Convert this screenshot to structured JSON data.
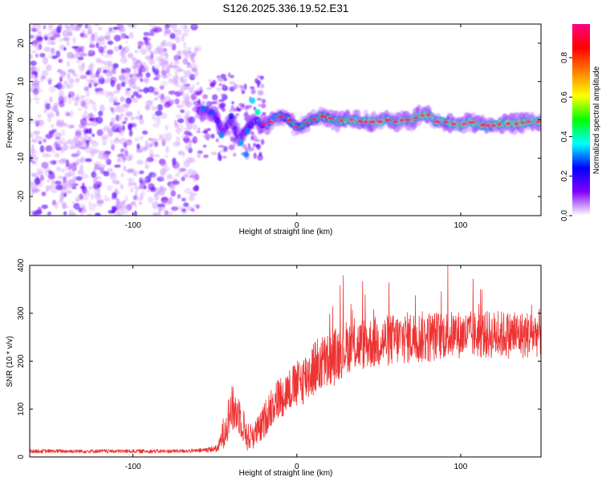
{
  "title": "S126.2025.336.19.52.E31",
  "chart_data": [
    {
      "type": "heatmap",
      "name": "spectrogram",
      "xlabel": "Height of straight line (km)",
      "ylabel": "Frequency (Hz)",
      "xlim": [
        -163,
        149
      ],
      "ylim": [
        -25,
        25
      ],
      "xticks": [
        -100,
        0,
        100
      ],
      "yticks": [
        -20,
        -10,
        0,
        10,
        20
      ],
      "colorbar": {
        "label": "Normalized spectral amplitude",
        "range": [
          0,
          0.97
        ],
        "ticks": [
          0.0,
          0.2,
          0.4,
          0.6,
          0.8
        ],
        "tick_labels": [
          "0.0",
          "0.2",
          "0.4",
          "0.6",
          "0.8"
        ],
        "colors": [
          "#ffffff",
          "#8000ff",
          "#0000ff",
          "#00ffff",
          "#00ff00",
          "#ffff00",
          "#ff8000",
          "#ff0000",
          "#ff0080"
        ]
      },
      "noise_region": {
        "x": [
          -163,
          -60
        ],
        "amplitude": [
          0.03,
          0.18
        ]
      },
      "transition_region": {
        "x": [
          -60,
          -20
        ],
        "amplitude": [
          0.05,
          0.35
        ]
      },
      "track": {
        "x": [
          -60,
          -55,
          -50,
          -45,
          -40,
          -35,
          -30,
          -25,
          -22,
          -18,
          -15,
          -10,
          -5,
          0,
          5,
          10,
          15,
          20,
          25,
          30,
          35,
          40,
          45,
          50,
          55,
          60,
          65,
          70,
          75,
          80,
          85,
          90,
          95,
          100,
          105,
          110,
          115,
          120,
          125,
          130,
          135,
          140,
          145,
          149
        ],
        "freq": [
          2,
          2.5,
          1,
          -3,
          0,
          -5,
          -2,
          0,
          -1,
          -1.5,
          0,
          1,
          0,
          -2,
          -1,
          0,
          1,
          0.5,
          -0.5,
          0,
          0,
          -0.5,
          -0.5,
          -0.5,
          0,
          -0.5,
          0,
          0,
          1,
          1.5,
          -0.5,
          -0.5,
          -1,
          -1.5,
          -0.5,
          -1,
          -1.5,
          -1.5,
          -1,
          -1,
          -1,
          -0.5,
          -0.5,
          -0.5
        ],
        "amp": [
          0.25,
          0.28,
          0.25,
          0.3,
          0.28,
          0.3,
          0.3,
          0.35,
          0.4,
          0.5,
          0.6,
          0.65,
          0.7,
          0.7,
          0.75,
          0.8,
          0.8,
          0.85,
          0.85,
          0.9,
          0.9,
          0.92,
          0.9,
          0.92,
          0.92,
          0.9,
          0.92,
          0.9,
          0.9,
          0.92,
          0.92,
          0.9,
          0.92,
          0.92,
          0.9,
          0.92,
          0.9,
          0.92,
          0.9,
          0.92,
          0.92,
          0.9,
          0.9,
          0.9
        ]
      }
    },
    {
      "type": "line",
      "name": "snr",
      "xlabel": "Height of straight line (km)",
      "ylabel": "SNR (10 * v/v)",
      "xlim": [
        -163,
        149
      ],
      "ylim": [
        0,
        400
      ],
      "xticks": [
        -100,
        0,
        100
      ],
      "yticks": [
        0,
        100,
        200,
        300,
        400
      ],
      "color": "#ee3333",
      "series": [
        {
          "name": "SNR",
          "x": [
            -163,
            -140,
            -120,
            -100,
            -80,
            -60,
            -48,
            -44,
            -40,
            -35,
            -30,
            -25,
            -22,
            -18,
            -15,
            -10,
            -5,
            0,
            5,
            10,
            15,
            20,
            25,
            30,
            40,
            50,
            60,
            70,
            80,
            90,
            100,
            110,
            120,
            130,
            140,
            149
          ],
          "baseline": [
            12,
            12,
            12,
            12,
            12,
            13,
            18,
            60,
            100,
            90,
            40,
            50,
            60,
            90,
            110,
            125,
            140,
            150,
            165,
            185,
            195,
            200,
            215,
            230,
            235,
            240,
            245,
            250,
            250,
            255,
            255,
            255,
            255,
            255,
            255,
            260
          ],
          "noise": [
            4,
            4,
            4,
            4,
            4,
            4,
            8,
            40,
            50,
            45,
            30,
            30,
            35,
            40,
            45,
            45,
            45,
            50,
            55,
            60,
            60,
            60,
            60,
            55,
            55,
            55,
            55,
            55,
            55,
            50,
            50,
            50,
            50,
            50,
            50,
            50
          ]
        }
      ]
    }
  ]
}
